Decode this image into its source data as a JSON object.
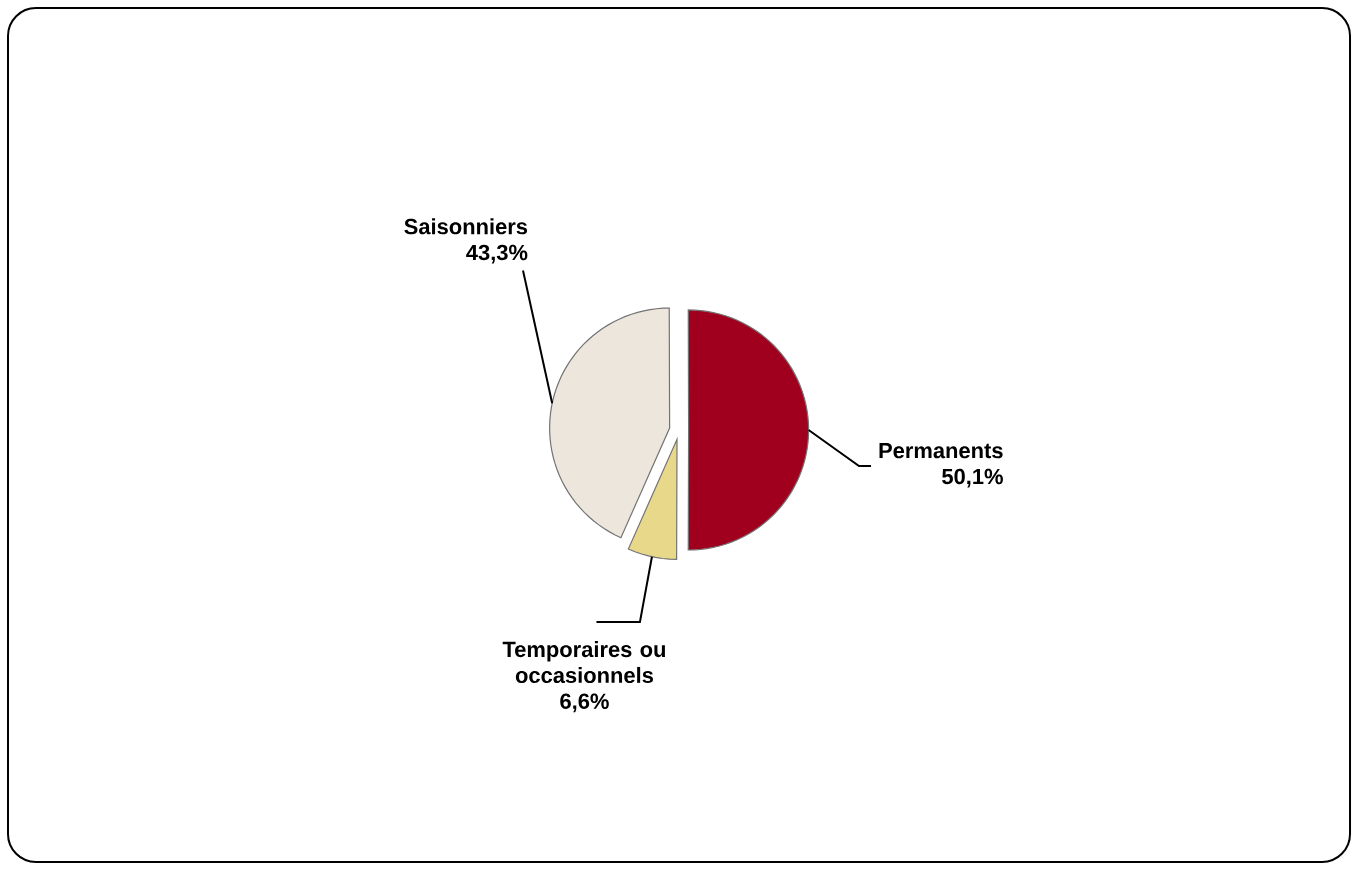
{
  "chart_data": {
    "type": "pie",
    "categories": [
      "Permanents",
      "Saisonniers",
      "Temporaires ou occasionnels"
    ],
    "values": [
      50.1,
      43.3,
      6.6
    ],
    "colors": [
      "#a0001e",
      "#ece6dc",
      "#e8d88a"
    ],
    "value_labels": [
      "50,1%",
      "43,3%",
      "6,6%"
    ]
  }
}
